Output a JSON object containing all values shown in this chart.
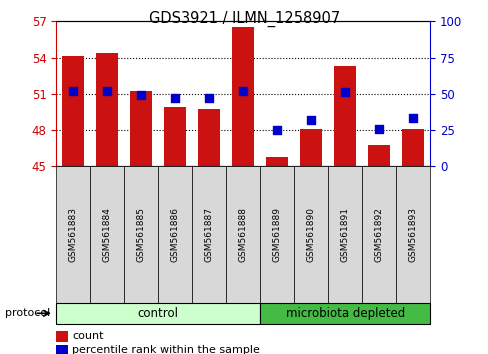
{
  "title": "GDS3921 / ILMN_1258907",
  "samples": [
    "GSM561883",
    "GSM561884",
    "GSM561885",
    "GSM561886",
    "GSM561887",
    "GSM561888",
    "GSM561889",
    "GSM561890",
    "GSM561891",
    "GSM561892",
    "GSM561893"
  ],
  "red_values": [
    54.1,
    54.4,
    51.2,
    49.95,
    49.75,
    56.5,
    45.8,
    48.05,
    53.3,
    46.8,
    48.05
  ],
  "blue_values": [
    52,
    52,
    49,
    47,
    47,
    52,
    25,
    32,
    51,
    26,
    33
  ],
  "ylim_left": [
    45,
    57
  ],
  "ylim_right": [
    0,
    100
  ],
  "yticks_left": [
    45,
    48,
    51,
    54,
    57
  ],
  "yticks_right": [
    0,
    25,
    50,
    75,
    100
  ],
  "bar_color": "#cc1111",
  "dot_color": "#0000cc",
  "bar_base": 45,
  "n_control": 6,
  "n_micro": 5,
  "group_labels": [
    "control",
    "microbiota depleted"
  ],
  "control_color": "#ccffcc",
  "microdepleted_color": "#44bb44",
  "protocol_label": "protocol",
  "legend_count": "count",
  "legend_percentile": "percentile rank within the sample",
  "bg_color": "#ffffff",
  "tick_color_left": "#cc0000",
  "tick_color_right": "#0000cc",
  "label_bg_color": "#d8d8d8",
  "bar_width": 0.65,
  "dot_size": 35
}
